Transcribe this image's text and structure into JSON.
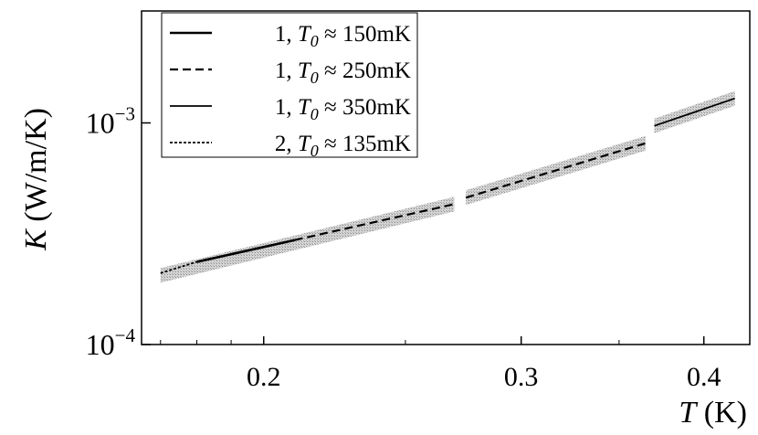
{
  "chart_data": {
    "type": "line",
    "x_scale": "log",
    "y_scale": "log",
    "xlim": [
      0.165,
      0.43
    ],
    "ylim": [
      0.0001,
      0.0032
    ],
    "xticks": [
      {
        "value": 0.2,
        "label": "0.2"
      },
      {
        "value": 0.3,
        "label": "0.3"
      },
      {
        "value": 0.4,
        "label": "0.4"
      }
    ],
    "yticks": [
      {
        "value": 0.0001,
        "base": "10",
        "exp": "−4"
      },
      {
        "value": 0.001,
        "base": "10",
        "exp": "−3"
      }
    ],
    "xlabel": {
      "var": "T",
      "unit": " (K)"
    },
    "ylabel": {
      "var": "K",
      "unit": " (W/m/K)"
    },
    "legend_position": "top-left",
    "series": [
      {
        "name": {
          "pre": "1, ",
          "var": "T",
          "sub": "0",
          "post": " ≈ 150mK"
        },
        "style": "solid-thick",
        "x": [
          0.18,
          0.21
        ],
        "y": [
          0.000236,
          0.000296
        ]
      },
      {
        "name": {
          "pre": "1, ",
          "var": "T",
          "sub": "0",
          "post": " ≈ 250mK"
        },
        "style": "dashed",
        "x": [
          0.21,
          0.27
        ],
        "y": [
          0.000296,
          0.00043
        ]
      },
      {
        "name": {
          "pre": "1, ",
          "var": "T",
          "sub": "0",
          "post": " ≈ 350mK"
        },
        "style": "solid",
        "x": [
          0.37,
          0.42
        ],
        "y": [
          0.00097,
          0.00129
        ]
      },
      {
        "name": {
          "pre": "2, ",
          "var": "T",
          "sub": "0",
          "post": " ≈ 135mK"
        },
        "style": "dotted",
        "x": [
          0.17,
          0.18
        ],
        "y": [
          0.00021,
          0.000236
        ]
      }
    ],
    "extra_segments": [
      {
        "style": "dashed",
        "x": [
          0.275,
          0.365
        ],
        "y": [
          0.00046,
          0.00081
        ]
      }
    ],
    "uncertainty_bands": [
      {
        "x": [
          0.17,
          0.27
        ],
        "y": [
          0.000205,
          0.00043
        ]
      },
      {
        "x": [
          0.275,
          0.365
        ],
        "y": [
          0.00046,
          0.00081
        ]
      },
      {
        "x": [
          0.37,
          0.42
        ],
        "y": [
          0.00097,
          0.00129
        ]
      }
    ]
  }
}
